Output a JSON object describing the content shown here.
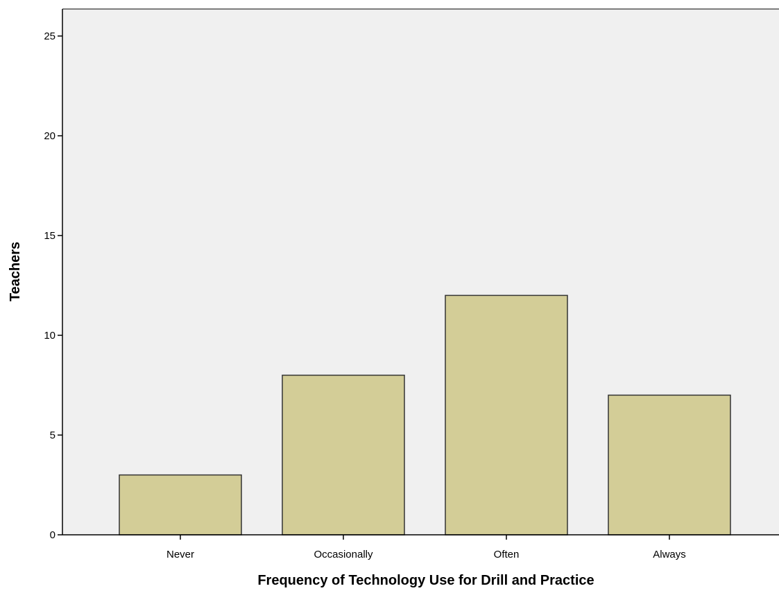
{
  "chart_data": {
    "type": "bar",
    "title": "",
    "xlabel": "Frequency of Technology Use for Drill and Practice",
    "ylabel": "Teachers",
    "categories": [
      "Never",
      "Occasionally",
      "Often",
      "Always"
    ],
    "values": [
      3,
      8,
      12,
      7
    ],
    "ylim": [
      0,
      26
    ],
    "yticks": [
      "0",
      "5",
      "10",
      "15",
      "20",
      "25"
    ],
    "legend": "none",
    "grid": false,
    "colors": {
      "bar_fill": "#d3cd97",
      "bar_stroke": "#333333",
      "plot_background": "#f0f0f0",
      "axis": "#000000"
    }
  }
}
